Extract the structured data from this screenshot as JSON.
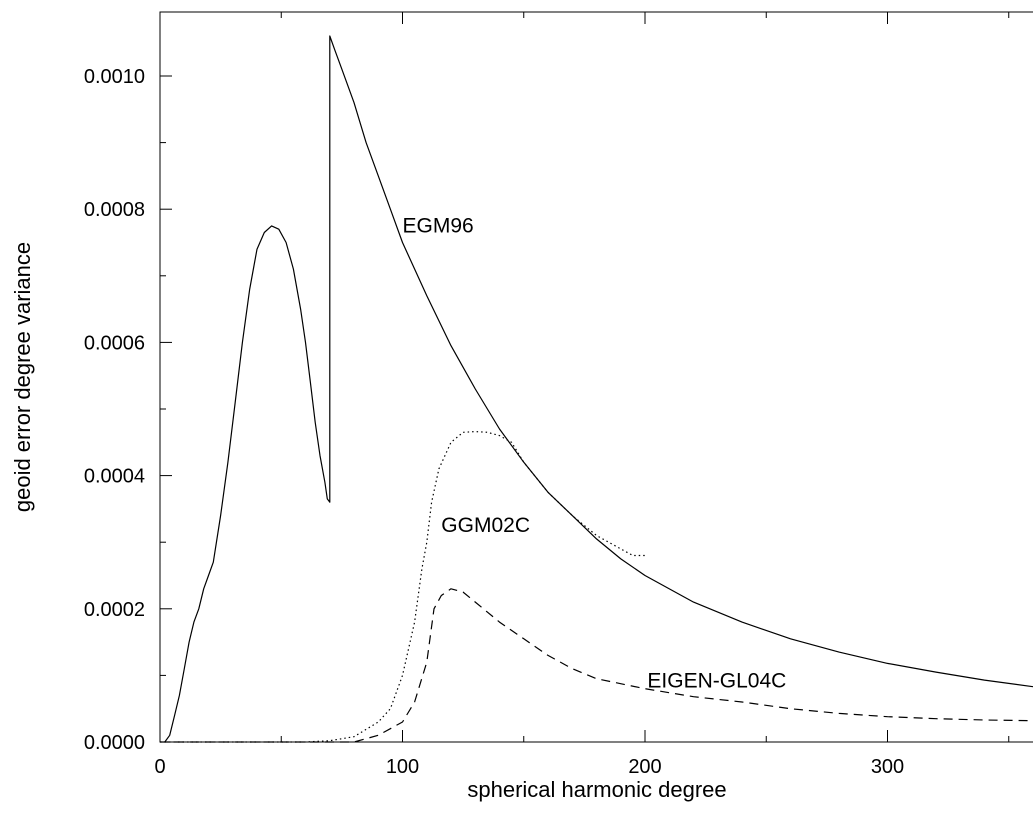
{
  "chart_data": {
    "type": "line",
    "title": "",
    "xlabel": "spherical harmonic degree",
    "ylabel": "geoid error degree variance",
    "xlim": [
      0,
      360
    ],
    "ylim": [
      0,
      0.0011
    ],
    "xticks": [
      0,
      100,
      200,
      300
    ],
    "xtick_labels": [
      "0",
      "100",
      "200",
      "300"
    ],
    "yticks": [
      0,
      0.0002,
      0.0004,
      0.0006,
      0.0008,
      0.001
    ],
    "ytick_labels": [
      "0.0000",
      "0.0002",
      "0.0004",
      "0.0006",
      "0.0008",
      "0.0010"
    ],
    "grid": false,
    "legend": "none",
    "series": [
      {
        "name": "EGM96",
        "line_style": "solid",
        "x": [
          2,
          4,
          6,
          8,
          10,
          12,
          14,
          16,
          18,
          20,
          22,
          25,
          28,
          31,
          34,
          37,
          40,
          43,
          46,
          49,
          52,
          55,
          58,
          60,
          62,
          64,
          66,
          68,
          69,
          70,
          70,
          72,
          75,
          80,
          85,
          90,
          95,
          100,
          110,
          120,
          130,
          140,
          150,
          160,
          170,
          180,
          190,
          200,
          220,
          240,
          260,
          280,
          300,
          320,
          340,
          360
        ],
        "y": [
          0.0,
          1e-05,
          4e-05,
          7e-05,
          0.00011,
          0.00015,
          0.00018,
          0.0002,
          0.00023,
          0.00025,
          0.00027,
          0.00034,
          0.00042,
          0.00051,
          0.0006,
          0.00068,
          0.00074,
          0.000765,
          0.000775,
          0.00077,
          0.00075,
          0.00071,
          0.00065,
          0.0006,
          0.00054,
          0.00048,
          0.00043,
          0.00039,
          0.000365,
          0.00036,
          0.00106,
          0.00104,
          0.00101,
          0.00096,
          0.0009,
          0.00085,
          0.0008,
          0.00075,
          0.00067,
          0.000595,
          0.00053,
          0.00047,
          0.00042,
          0.000375,
          0.00034,
          0.000305,
          0.000275,
          0.00025,
          0.00021,
          0.00018,
          0.000155,
          0.000135,
          0.000118,
          0.000105,
          9.3e-05,
          8.3e-05
        ]
      },
      {
        "name": "GGM02C",
        "line_style": "dotted",
        "x": [
          0,
          60,
          70,
          80,
          90,
          95,
          100,
          105,
          108,
          110,
          112,
          115,
          120,
          125,
          130,
          135,
          140,
          145,
          150,
          160,
          170,
          180,
          190,
          195,
          200
        ],
        "y": [
          0.0,
          0.0,
          2e-06,
          8e-06,
          3e-05,
          5e-05,
          0.0001,
          0.00018,
          0.00026,
          0.0003,
          0.00036,
          0.00041,
          0.00045,
          0.000465,
          0.000466,
          0.000465,
          0.00046,
          0.00045,
          0.00042,
          0.000375,
          0.00034,
          0.00031,
          0.00029,
          0.00028,
          0.00028
        ]
      },
      {
        "name": "EIGEN-GL04C",
        "line_style": "dashed",
        "x": [
          0,
          80,
          90,
          100,
          105,
          110,
          113,
          116,
          120,
          125,
          130,
          140,
          150,
          160,
          170,
          180,
          200,
          220,
          240,
          260,
          280,
          300,
          320,
          340,
          360
        ],
        "y": [
          0.0,
          0.0,
          1e-05,
          3e-05,
          6e-05,
          0.00012,
          0.0002,
          0.00022,
          0.00023,
          0.000225,
          0.00021,
          0.00018,
          0.000155,
          0.00013,
          0.00011,
          9.5e-05,
          8e-05,
          6.8e-05,
          6e-05,
          5e-05,
          4.3e-05,
          3.8e-05,
          3.5e-05,
          3.3e-05,
          3.2e-05
        ]
      }
    ],
    "annotations": [
      {
        "text": "EGM96",
        "x": 100,
        "y": 0.000765
      },
      {
        "text": "GGM02C",
        "x": 116,
        "y": 0.000315
      },
      {
        "text": "EIGEN-GL04C",
        "x": 201,
        "y": 8.15e-05
      }
    ]
  }
}
